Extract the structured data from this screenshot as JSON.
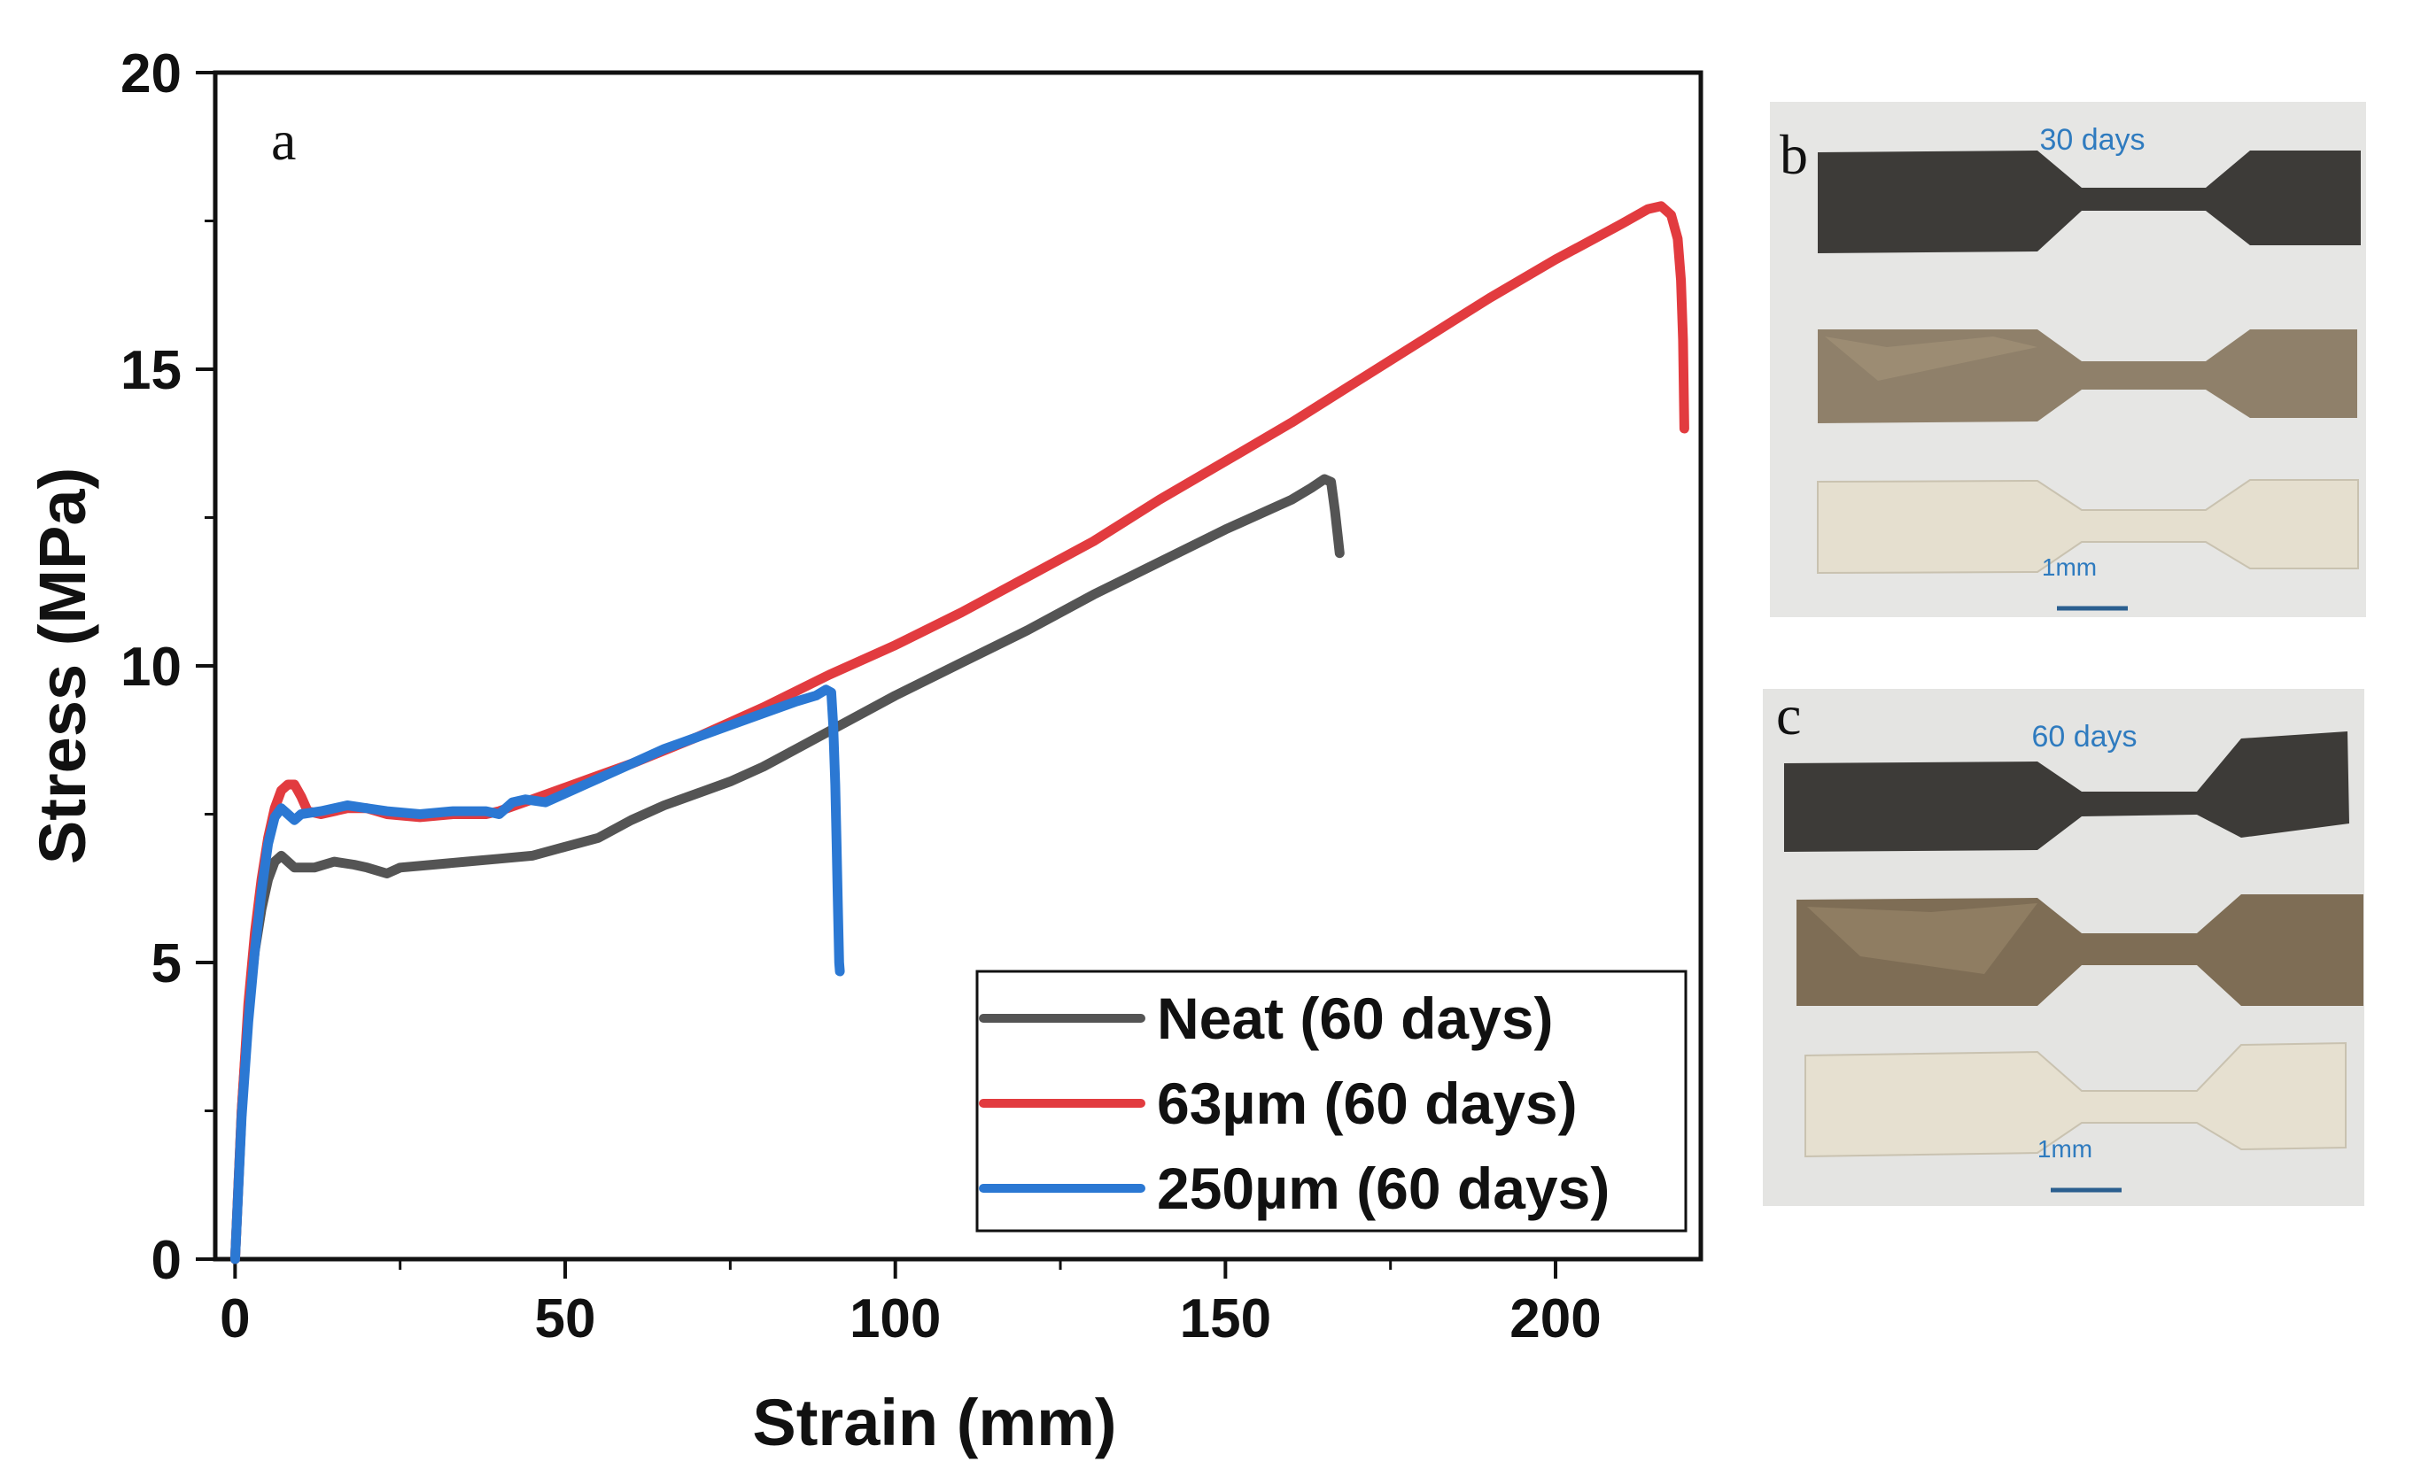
{
  "chart_data": {
    "type": "line",
    "panel_label": "a",
    "xlabel": "Strain (mm)",
    "ylabel": "Stress (MPa)",
    "xlim": [
      -3,
      222
    ],
    "ylim": [
      0,
      20
    ],
    "xticks": [
      0,
      50,
      100,
      150,
      200
    ],
    "yticks": [
      0,
      5,
      10,
      15,
      20
    ],
    "legend_position": "bottom-right",
    "series": [
      {
        "name": "Neat (60 days)",
        "color": "#545454",
        "points": [
          [
            0,
            0
          ],
          [
            1,
            2.5
          ],
          [
            2,
            4.2
          ],
          [
            3,
            5.2
          ],
          [
            4,
            5.9
          ],
          [
            5,
            6.4
          ],
          [
            6,
            6.7
          ],
          [
            7,
            6.8
          ],
          [
            8,
            6.7
          ],
          [
            9,
            6.6
          ],
          [
            12,
            6.6
          ],
          [
            15,
            6.7
          ],
          [
            18,
            6.65
          ],
          [
            20,
            6.6
          ],
          [
            23,
            6.5
          ],
          [
            25,
            6.6
          ],
          [
            30,
            6.65
          ],
          [
            35,
            6.7
          ],
          [
            40,
            6.75
          ],
          [
            45,
            6.8
          ],
          [
            50,
            6.95
          ],
          [
            55,
            7.1
          ],
          [
            60,
            7.4
          ],
          [
            65,
            7.65
          ],
          [
            70,
            7.85
          ],
          [
            75,
            8.05
          ],
          [
            80,
            8.3
          ],
          [
            85,
            8.6
          ],
          [
            90,
            8.9
          ],
          [
            95,
            9.2
          ],
          [
            100,
            9.5
          ],
          [
            110,
            10.05
          ],
          [
            120,
            10.6
          ],
          [
            130,
            11.2
          ],
          [
            140,
            11.75
          ],
          [
            150,
            12.3
          ],
          [
            160,
            12.8
          ],
          [
            163,
            13.0
          ],
          [
            165,
            13.15
          ],
          [
            166,
            13.1
          ],
          [
            166.6,
            12.6
          ],
          [
            167,
            12.2
          ],
          [
            167.3,
            11.9
          ]
        ]
      },
      {
        "name": "63µm (60 days)",
        "color": "#e23b3f",
        "points": [
          [
            0,
            0
          ],
          [
            1,
            2.5
          ],
          [
            2,
            4.3
          ],
          [
            3,
            5.5
          ],
          [
            4,
            6.4
          ],
          [
            5,
            7.1
          ],
          [
            6,
            7.6
          ],
          [
            7,
            7.9
          ],
          [
            8,
            8.0
          ],
          [
            9,
            8.0
          ],
          [
            10,
            7.8
          ],
          [
            11,
            7.55
          ],
          [
            13,
            7.5
          ],
          [
            17,
            7.6
          ],
          [
            20,
            7.6
          ],
          [
            23,
            7.5
          ],
          [
            28,
            7.45
          ],
          [
            33,
            7.5
          ],
          [
            38,
            7.5
          ],
          [
            40,
            7.55
          ],
          [
            45,
            7.75
          ],
          [
            50,
            7.95
          ],
          [
            55,
            8.15
          ],
          [
            60,
            8.35
          ],
          [
            70,
            8.8
          ],
          [
            80,
            9.3
          ],
          [
            90,
            9.85
          ],
          [
            100,
            10.35
          ],
          [
            110,
            10.9
          ],
          [
            120,
            11.5
          ],
          [
            130,
            12.1
          ],
          [
            140,
            12.8
          ],
          [
            150,
            13.45
          ],
          [
            160,
            14.1
          ],
          [
            170,
            14.8
          ],
          [
            180,
            15.5
          ],
          [
            190,
            16.2
          ],
          [
            200,
            16.85
          ],
          [
            205,
            17.15
          ],
          [
            210,
            17.45
          ],
          [
            214,
            17.7
          ],
          [
            216,
            17.75
          ],
          [
            217.5,
            17.6
          ],
          [
            218.5,
            17.2
          ],
          [
            219,
            16.5
          ],
          [
            219.3,
            15.5
          ],
          [
            219.5,
            14.0
          ]
        ]
      },
      {
        "name": "250µm (60 days)",
        "color": "#2b78d3",
        "points": [
          [
            0,
            0
          ],
          [
            1,
            2.4
          ],
          [
            2,
            4.0
          ],
          [
            3,
            5.2
          ],
          [
            4,
            6.2
          ],
          [
            5,
            7.0
          ],
          [
            6,
            7.45
          ],
          [
            7,
            7.6
          ],
          [
            8,
            7.5
          ],
          [
            9,
            7.4
          ],
          [
            10,
            7.5
          ],
          [
            13,
            7.55
          ],
          [
            17,
            7.65
          ],
          [
            20,
            7.6
          ],
          [
            23,
            7.55
          ],
          [
            28,
            7.5
          ],
          [
            33,
            7.55
          ],
          [
            38,
            7.55
          ],
          [
            40,
            7.5
          ],
          [
            42,
            7.7
          ],
          [
            44,
            7.75
          ],
          [
            47,
            7.7
          ],
          [
            50,
            7.85
          ],
          [
            55,
            8.1
          ],
          [
            60,
            8.35
          ],
          [
            65,
            8.6
          ],
          [
            70,
            8.8
          ],
          [
            75,
            9.0
          ],
          [
            80,
            9.2
          ],
          [
            85,
            9.4
          ],
          [
            88,
            9.5
          ],
          [
            89.5,
            9.6
          ],
          [
            90.3,
            9.55
          ],
          [
            90.6,
            9.0
          ],
          [
            90.9,
            8.0
          ],
          [
            91.1,
            7.0
          ],
          [
            91.3,
            6.0
          ],
          [
            91.5,
            5.0
          ],
          [
            91.6,
            4.85
          ]
        ]
      }
    ]
  },
  "photos": [
    {
      "panel_label": "b",
      "caption": "30 days",
      "scale_label": "1mm"
    },
    {
      "panel_label": "c",
      "caption": "60 days",
      "scale_label": "1mm"
    }
  ]
}
